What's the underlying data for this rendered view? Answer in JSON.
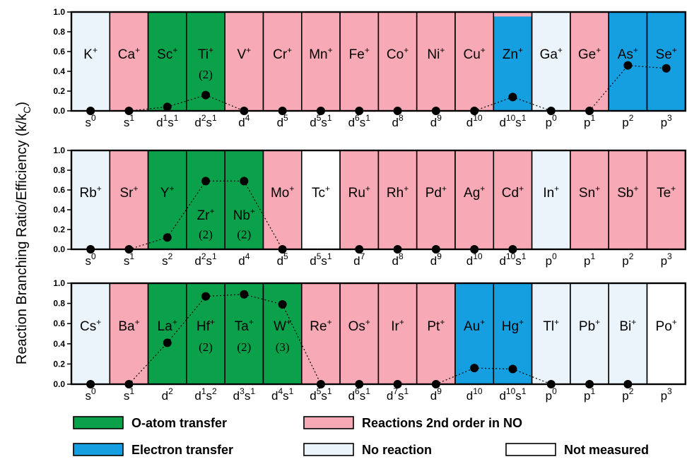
{
  "ylabel_main": "Reaction Branching Ratio/Efficiency (k/k",
  "ylabel_sub": "C",
  "ylabel_close": ")",
  "colors": {
    "o_atom": "#0aa14a",
    "electron": "#159fe0",
    "reaction2": "#f7a9b5",
    "noreaction": "#ecf4fb",
    "notmeasured": "#ffffff"
  },
  "legend": [
    {
      "key": "o_atom",
      "label": "O-atom transfer"
    },
    {
      "key": "reaction2",
      "label": "Reactions 2nd order in NO"
    },
    {
      "key": "electron",
      "label": "Electron transfer"
    },
    {
      "key": "noreaction",
      "label": "No reaction"
    },
    {
      "key": "notmeasured",
      "label": "Not measured"
    }
  ],
  "chart_data": [
    {
      "type": "bar",
      "ylim": [
        0,
        1.0
      ],
      "yticks": [
        "0.0",
        "0.2",
        "0.4",
        "0.6",
        "0.8",
        "1.0"
      ],
      "ions": [
        {
          "el": "K",
          "cfg": [
            [
              "s",
              "0"
            ]
          ],
          "cls": "noreaction",
          "value": 0
        },
        {
          "el": "Ca",
          "cfg": [
            [
              "s",
              "1"
            ]
          ],
          "cls": "reaction2",
          "value": 0
        },
        {
          "el": "Sc",
          "cfg": [
            [
              "d",
              "1"
            ],
            [
              "s",
              "1"
            ]
          ],
          "cls": "o_atom",
          "value": 0.04
        },
        {
          "el": "Ti",
          "cfg": [
            [
              "d",
              "2"
            ],
            [
              "s",
              "1"
            ]
          ],
          "cls": "o_atom",
          "value": 0.16,
          "nox": "(2)"
        },
        {
          "el": "V",
          "cfg": [
            [
              "d",
              "4"
            ]
          ],
          "cls": "reaction2",
          "value": 0
        },
        {
          "el": "Cr",
          "cfg": [
            [
              "d",
              "5"
            ]
          ],
          "cls": "reaction2",
          "value": 0
        },
        {
          "el": "Mn",
          "cfg": [
            [
              "d",
              "5"
            ],
            [
              "s",
              "1"
            ]
          ],
          "cls": "reaction2",
          "value": 0
        },
        {
          "el": "Fe",
          "cfg": [
            [
              "d",
              "6"
            ],
            [
              "s",
              "1"
            ]
          ],
          "cls": "reaction2",
          "value": 0
        },
        {
          "el": "Co",
          "cfg": [
            [
              "d",
              "8"
            ]
          ],
          "cls": "reaction2",
          "value": 0
        },
        {
          "el": "Ni",
          "cfg": [
            [
              "d",
              "9"
            ]
          ],
          "cls": "reaction2",
          "value": 0
        },
        {
          "el": "Cu",
          "cfg": [
            [
              "d",
              "10"
            ]
          ],
          "cls": "reaction2",
          "value": 0
        },
        {
          "el": "Zn",
          "cfg": [
            [
              "d",
              "10"
            ],
            [
              "s",
              "1"
            ]
          ],
          "cls": "electron",
          "value": 0.14,
          "topcls": "reaction2",
          "topfrac": 0.04
        },
        {
          "el": "Ga",
          "cfg": [
            [
              "p",
              "0"
            ]
          ],
          "cls": "noreaction",
          "value": 0
        },
        {
          "el": "Ge",
          "cfg": [
            [
              "p",
              "1"
            ]
          ],
          "cls": "reaction2",
          "value": 0
        },
        {
          "el": "As",
          "cfg": [
            [
              "p",
              "2"
            ]
          ],
          "cls": "electron",
          "value": 0.46
        },
        {
          "el": "Se",
          "cfg": [
            [
              "p",
              "3"
            ]
          ],
          "cls": "electron",
          "value": 0.43
        }
      ]
    },
    {
      "type": "bar",
      "ylim": [
        0,
        1.0
      ],
      "yticks": [
        "0.0",
        "0.2",
        "0.4",
        "0.6",
        "0.8",
        "1.0"
      ],
      "ions": [
        {
          "el": "Rb",
          "cfg": [
            [
              "s",
              "0"
            ]
          ],
          "cls": "noreaction",
          "value": 0
        },
        {
          "el": "Sr",
          "cfg": [
            [
              "s",
              "1"
            ]
          ],
          "cls": "reaction2",
          "value": 0
        },
        {
          "el": "Y",
          "cfg": [
            [
              "s",
              "2"
            ]
          ],
          "cls": "o_atom",
          "value": 0.12
        },
        {
          "el": "Zr",
          "cfg": [
            [
              "d",
              "2"
            ],
            [
              "s",
              "1"
            ]
          ],
          "cls": "o_atom",
          "value": 0.69,
          "nox": "(2)",
          "low": true
        },
        {
          "el": "Nb",
          "cfg": [
            [
              "d",
              "4"
            ]
          ],
          "cls": "o_atom",
          "value": 0.69,
          "nox": "(2)",
          "low": true
        },
        {
          "el": "Mo",
          "cfg": [
            [
              "d",
              "5"
            ]
          ],
          "cls": "reaction2",
          "value": 0
        },
        {
          "el": "Tc",
          "cfg": [
            [
              "d",
              "5"
            ],
            [
              "s",
              "1"
            ]
          ],
          "cls": "notmeasured",
          "value": null
        },
        {
          "el": "Ru",
          "cfg": [
            [
              "d",
              "7"
            ]
          ],
          "cls": "reaction2",
          "value": 0
        },
        {
          "el": "Rh",
          "cfg": [
            [
              "d",
              "8"
            ]
          ],
          "cls": "reaction2",
          "value": 0
        },
        {
          "el": "Pd",
          "cfg": [
            [
              "d",
              "9"
            ]
          ],
          "cls": "reaction2",
          "value": 0
        },
        {
          "el": "Ag",
          "cfg": [
            [
              "d",
              "10"
            ]
          ],
          "cls": "reaction2",
          "value": 0
        },
        {
          "el": "Cd",
          "cfg": [
            [
              "d",
              "10"
            ],
            [
              "s",
              "1"
            ]
          ],
          "cls": "reaction2",
          "value": 0
        },
        {
          "el": "In",
          "cfg": [
            [
              "p",
              "0"
            ]
          ],
          "cls": "noreaction",
          "value": null
        },
        {
          "el": "Sn",
          "cfg": [
            [
              "p",
              "1"
            ]
          ],
          "cls": "reaction2",
          "value": null
        },
        {
          "el": "Sb",
          "cfg": [
            [
              "p",
              "2"
            ]
          ],
          "cls": "reaction2",
          "value": null
        },
        {
          "el": "Te",
          "cfg": [
            [
              "p",
              "3"
            ]
          ],
          "cls": "reaction2",
          "value": null
        }
      ]
    },
    {
      "type": "bar",
      "ylim": [
        0,
        1.0
      ],
      "yticks": [
        "0.0",
        "0.2",
        "0.4",
        "0.6",
        "0.8",
        "1.0"
      ],
      "ions": [
        {
          "el": "Cs",
          "cfg": [
            [
              "s",
              "0"
            ]
          ],
          "cls": "noreaction",
          "value": 0
        },
        {
          "el": "Ba",
          "cfg": [
            [
              "s",
              "1"
            ]
          ],
          "cls": "reaction2",
          "value": 0
        },
        {
          "el": "La",
          "cfg": [
            [
              "d",
              "2"
            ]
          ],
          "cls": "o_atom",
          "value": 0.41
        },
        {
          "el": "Hf",
          "cfg": [
            [
              "d",
              "1"
            ],
            [
              "s",
              "2"
            ]
          ],
          "cls": "o_atom",
          "value": 0.87,
          "nox": "(2)"
        },
        {
          "el": "Ta",
          "cfg": [
            [
              "d",
              "3"
            ],
            [
              "s",
              "1"
            ]
          ],
          "cls": "o_atom",
          "value": 0.89,
          "nox": "(2)"
        },
        {
          "el": "W",
          "cfg": [
            [
              "d",
              "4"
            ],
            [
              "s",
              "1"
            ]
          ],
          "cls": "o_atom",
          "value": 0.79,
          "nox": "(3)"
        },
        {
          "el": "Re",
          "cfg": [
            [
              "d",
              "5"
            ],
            [
              "s",
              "1"
            ]
          ],
          "cls": "reaction2",
          "value": 0
        },
        {
          "el": "Os",
          "cfg": [
            [
              "d",
              "6"
            ],
            [
              "s",
              "1"
            ]
          ],
          "cls": "reaction2",
          "value": 0
        },
        {
          "el": "Ir",
          "cfg": [
            [
              "d",
              "7"
            ],
            [
              "s",
              "1"
            ]
          ],
          "cls": "reaction2",
          "value": 0
        },
        {
          "el": "Pt",
          "cfg": [
            [
              "d",
              "9"
            ]
          ],
          "cls": "reaction2",
          "value": 0
        },
        {
          "el": "Au",
          "cfg": [
            [
              "d",
              "10"
            ]
          ],
          "cls": "electron",
          "value": 0.16
        },
        {
          "el": "Hg",
          "cfg": [
            [
              "d",
              "10"
            ],
            [
              "s",
              "1"
            ]
          ],
          "cls": "electron",
          "value": 0.15
        },
        {
          "el": "Tl",
          "cfg": [
            [
              "p",
              "0"
            ]
          ],
          "cls": "noreaction",
          "value": 0
        },
        {
          "el": "Pb",
          "cfg": [
            [
              "p",
              "1"
            ]
          ],
          "cls": "noreaction",
          "value": 0
        },
        {
          "el": "Bi",
          "cfg": [
            [
              "p",
              "2"
            ]
          ],
          "cls": "noreaction",
          "value": 0
        },
        {
          "el": "Po",
          "cfg": [
            [
              "p",
              "3"
            ]
          ],
          "cls": "notmeasured",
          "value": null
        }
      ]
    }
  ]
}
